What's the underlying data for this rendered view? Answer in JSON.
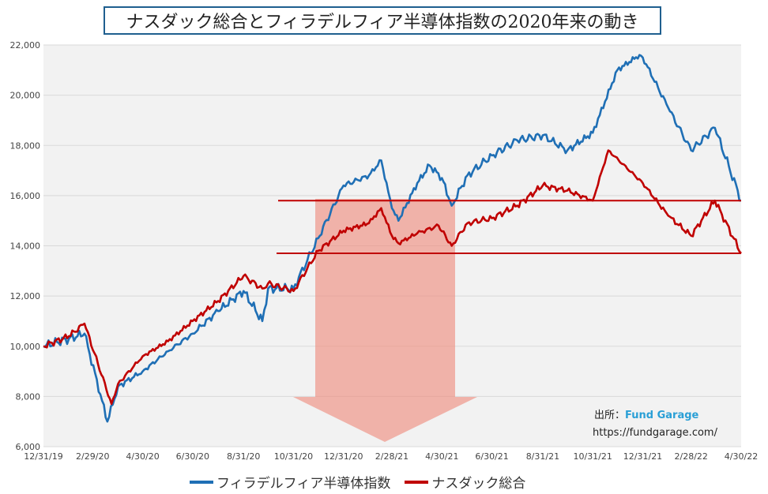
{
  "chart_data": {
    "type": "line",
    "title": "ナスダック総合とフィラデルフィア半導体指数の2020年来の動き",
    "xlabel": "",
    "ylabel": "",
    "ylim": [
      6000,
      22000
    ],
    "yticks": [
      6000,
      8000,
      10000,
      12000,
      14000,
      16000,
      18000,
      20000,
      22000
    ],
    "ytick_labels": [
      "6,000",
      "8,000",
      "10,000",
      "12,000",
      "14,000",
      "16,000",
      "18,000",
      "20,000",
      "22,000"
    ],
    "xtick_labels": [
      "12/31/19",
      "2/29/20",
      "4/30/20",
      "6/30/20",
      "8/31/20",
      "10/31/20",
      "12/31/20",
      "2/28/21",
      "4/30/21",
      "6/30/21",
      "8/31/21",
      "10/31/21",
      "12/31/21",
      "2/28/22",
      "4/30/22"
    ],
    "grid": "horizontal",
    "legend_position": "bottom",
    "reference_lines": [
      15800,
      13700
    ],
    "series": [
      {
        "name": "フィラデルフィア半導体指数",
        "color": "#1f6fb5",
        "x": [
          "12/31/19",
          "1/31/20",
          "2/19/20",
          "3/18/20",
          "3/31/20",
          "4/30/20",
          "5/31/20",
          "6/30/20",
          "7/31/20",
          "8/31/20",
          "9/23/20",
          "9/30/20",
          "10/31/20",
          "11/30/20",
          "12/31/20",
          "1/31/21",
          "2/15/21",
          "2/28/21",
          "3/8/21",
          "3/31/21",
          "4/15/21",
          "4/30/21",
          "5/12/21",
          "5/31/21",
          "6/30/21",
          "7/31/21",
          "8/31/21",
          "9/30/21",
          "10/31/21",
          "11/30/21",
          "12/27/21",
          "12/31/21",
          "1/31/22",
          "2/28/22",
          "3/29/22",
          "4/30/22"
        ],
        "y": [
          10000,
          10300,
          10500,
          7000,
          8400,
          9000,
          9800,
          10500,
          11400,
          12200,
          11000,
          12300,
          12300,
          14300,
          16400,
          16800,
          17400,
          15500,
          15000,
          16500,
          17200,
          16700,
          15600,
          16800,
          17600,
          18200,
          18400,
          17800,
          18500,
          21000,
          21600,
          21500,
          19500,
          17800,
          18700,
          15800
        ]
      },
      {
        "name": "ナスダック総合",
        "color": "#c00000",
        "x": [
          "12/31/19",
          "1/31/20",
          "2/19/20",
          "3/23/20",
          "3/31/20",
          "4/30/20",
          "5/31/20",
          "6/30/20",
          "7/31/20",
          "8/31/20",
          "9/23/20",
          "9/30/20",
          "10/31/20",
          "11/30/20",
          "12/31/20",
          "1/31/21",
          "2/15/21",
          "2/28/21",
          "3/8/21",
          "3/31/21",
          "4/26/21",
          "5/12/21",
          "5/31/21",
          "6/30/21",
          "7/31/21",
          "8/31/21",
          "9/30/21",
          "10/31/21",
          "11/19/21",
          "12/31/21",
          "1/31/22",
          "2/28/22",
          "3/29/22",
          "4/30/22"
        ],
        "y": [
          10000,
          10400,
          10900,
          7700,
          8500,
          9600,
          10200,
          11000,
          11800,
          12800,
          12300,
          12500,
          12200,
          13800,
          14600,
          14900,
          15500,
          14400,
          14100,
          14500,
          14800,
          14000,
          14900,
          15100,
          15600,
          16400,
          16200,
          15800,
          17800,
          16500,
          15200,
          14400,
          15800,
          13700
        ]
      }
    ]
  },
  "source": {
    "label": "出所：",
    "name": "Fund Garage",
    "url": "https://fundgarage.com/"
  }
}
